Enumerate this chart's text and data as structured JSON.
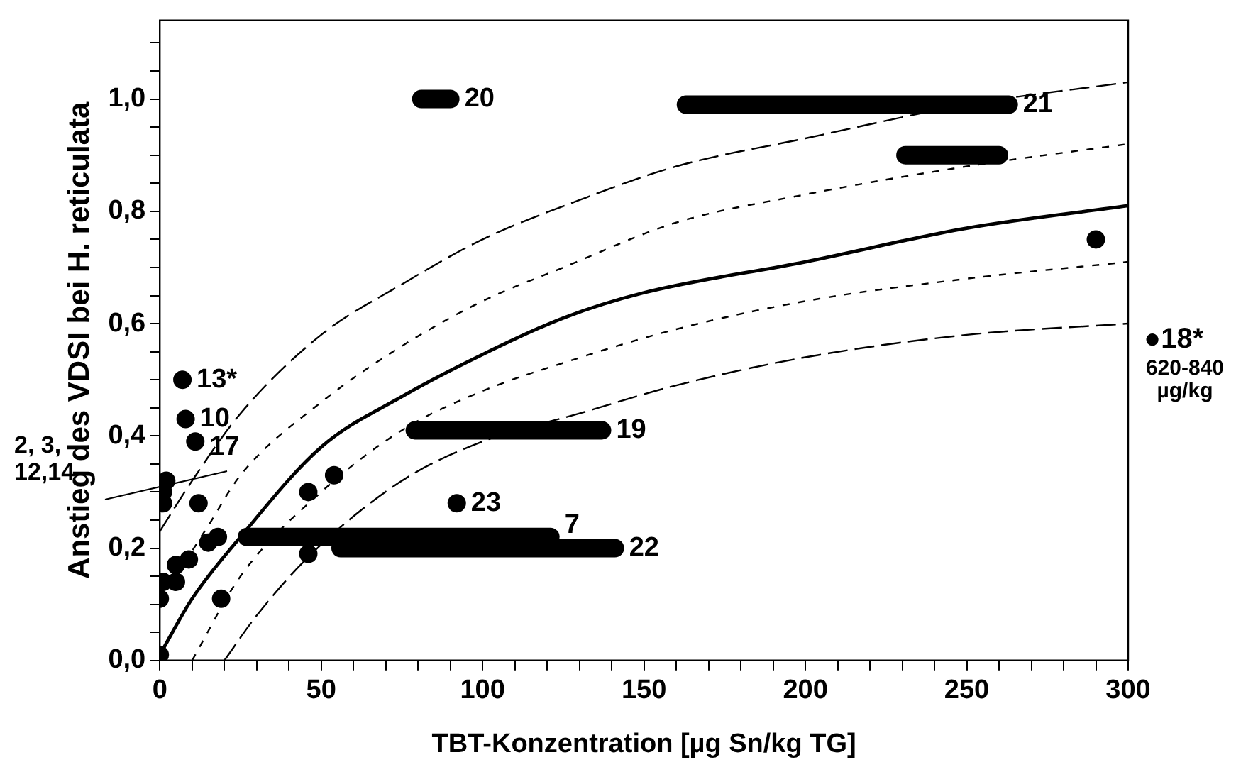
{
  "chart_data": {
    "type": "scatter",
    "xlabel": "TBT-Konzentration [µg Sn/kg TG]",
    "ylabel": "Anstieg des VDSI bei H. reticulata",
    "xlim": [
      0,
      300
    ],
    "ylim": [
      0,
      1.14
    ],
    "xticks": [
      0,
      {
        "value": 10,
        "label": null
      },
      {
        "value": 20,
        "label": null
      },
      {
        "value": 30,
        "label": null
      },
      {
        "value": 40,
        "label": null
      },
      50,
      {
        "value": 60,
        "label": null
      },
      {
        "value": 70,
        "label": null
      },
      {
        "value": 80,
        "label": null
      },
      {
        "value": 90,
        "label": null
      },
      100,
      {
        "value": 110,
        "label": null
      },
      {
        "value": 120,
        "label": null
      },
      {
        "value": 130,
        "label": null
      },
      {
        "value": 140,
        "label": null
      },
      150,
      {
        "value": 160,
        "label": null
      },
      {
        "value": 170,
        "label": null
      },
      {
        "value": 180,
        "label": null
      },
      {
        "value": 190,
        "label": null
      },
      200,
      {
        "value": 210,
        "label": null
      },
      {
        "value": 220,
        "label": null
      },
      {
        "value": 230,
        "label": null
      },
      {
        "value": 240,
        "label": null
      },
      250,
      {
        "value": 260,
        "label": null
      },
      {
        "value": 270,
        "label": null
      },
      {
        "value": 280,
        "label": null
      },
      {
        "value": 290,
        "label": null
      },
      300
    ],
    "yticks": [
      {
        "value": 0,
        "label": "0,0"
      },
      {
        "value": 0.05,
        "label": null
      },
      {
        "value": 0.1,
        "label": null
      },
      {
        "value": 0.15,
        "label": null
      },
      {
        "value": 0.2,
        "label": "0,2"
      },
      {
        "value": 0.25,
        "label": null
      },
      {
        "value": 0.3,
        "label": null
      },
      {
        "value": 0.35,
        "label": null
      },
      {
        "value": 0.4,
        "label": "0,4"
      },
      {
        "value": 0.45,
        "label": null
      },
      {
        "value": 0.5,
        "label": null
      },
      {
        "value": 0.55,
        "label": null
      },
      {
        "value": 0.6,
        "label": "0,6"
      },
      {
        "value": 0.65,
        "label": null
      },
      {
        "value": 0.7,
        "label": null
      },
      {
        "value": 0.75,
        "label": null
      },
      {
        "value": 0.8,
        "label": "0,8"
      },
      {
        "value": 0.85,
        "label": null
      },
      {
        "value": 0.9,
        "label": null
      },
      {
        "value": 0.95,
        "label": null
      },
      {
        "value": 1.0,
        "label": "1,0"
      },
      {
        "value": 1.05,
        "label": null
      },
      {
        "value": 1.1,
        "label": null
      }
    ],
    "grid": false,
    "legend": false,
    "annotations": [
      "2, 3, 12,14",
      "●18*",
      "620-840 µg/kg",
      {
        "text": "13*",
        "x": 7,
        "y": 0.5
      },
      {
        "text": "10",
        "x": 8,
        "y": 0.43
      },
      {
        "text": "17",
        "x": 11,
        "y": 0.38
      },
      {
        "text": "23",
        "x": 92,
        "y": 0.28
      },
      {
        "text": "20",
        "x": 90,
        "y": 1.0
      },
      {
        "text": "21",
        "x": 263,
        "y": 0.99
      },
      {
        "text": "19",
        "x": 137,
        "y": 0.41
      },
      {
        "text": "7",
        "x": 121,
        "y": 0.24
      },
      {
        "text": "22",
        "x": 141,
        "y": 0.2
      }
    ],
    "series": [
      {
        "color": "#000000",
        "marker": "circle",
        "x": [
          0,
          0,
          1,
          1,
          1,
          2,
          5,
          5,
          9,
          15,
          18,
          19,
          12,
          7,
          8,
          11,
          46,
          54,
          46,
          92,
          290
        ],
        "values": [
          0.01,
          0.11,
          0.14,
          0.28,
          0.3,
          0.32,
          0.14,
          0.17,
          0.18,
          0.21,
          0.22,
          0.11,
          0.28,
          0.5,
          0.43,
          0.39,
          0.3,
          0.33,
          0.19,
          0.28,
          0.75
        ]
      },
      {
        "type": "line",
        "color": "#000000",
        "line_style": "solid",
        "marker": "none",
        "x": [
          81,
          90
        ],
        "values": [
          1.0,
          1.0
        ]
      },
      {
        "type": "line",
        "color": "#000000",
        "line_style": "solid",
        "marker": "none",
        "x": [
          163,
          263
        ],
        "values": [
          0.99,
          0.99
        ]
      },
      {
        "type": "line",
        "color": "#000000",
        "line_style": "solid",
        "marker": "none",
        "x": [
          231,
          260
        ],
        "values": [
          0.9,
          0.9
        ]
      },
      {
        "type": "line",
        "color": "#000000",
        "line_style": "solid",
        "marker": "none",
        "x": [
          79,
          137
        ],
        "values": [
          0.41,
          0.41
        ]
      },
      {
        "type": "line",
        "color": "#000000",
        "line_style": "solid",
        "marker": "none",
        "x": [
          27,
          121
        ],
        "values": [
          0.22,
          0.22
        ]
      },
      {
        "type": "line",
        "color": "#000000",
        "line_style": "solid",
        "marker": "none",
        "x": [
          56,
          141
        ],
        "values": [
          0.2,
          0.2
        ]
      },
      {
        "type": "line",
        "color": "#000000",
        "line_style": "solid",
        "marker": "none",
        "x": [
          0,
          10,
          25,
          50,
          75,
          100,
          125,
          150,
          200,
          250,
          300
        ],
        "values": [
          0.01,
          0.11,
          0.22,
          0.38,
          0.47,
          0.545,
          0.61,
          0.655,
          0.71,
          0.77,
          0.81
        ]
      },
      {
        "type": "line",
        "color": "#000000",
        "line_style": "dashed",
        "marker": "none",
        "x": [
          0,
          10,
          25,
          50,
          75,
          100,
          130,
          160,
          200,
          250,
          300
        ],
        "values": [
          0.23,
          0.32,
          0.44,
          0.58,
          0.67,
          0.75,
          0.82,
          0.88,
          0.93,
          0.99,
          1.03
        ]
      },
      {
        "type": "line",
        "color": "#000000",
        "line_style": "dotted",
        "marker": "none",
        "x": [
          5,
          15,
          25,
          50,
          75,
          100,
          125,
          160,
          200,
          250,
          300
        ],
        "values": [
          0.15,
          0.24,
          0.33,
          0.46,
          0.56,
          0.64,
          0.7,
          0.78,
          0.83,
          0.88,
          0.92
        ]
      },
      {
        "type": "line",
        "color": "#000000",
        "line_style": "dotted",
        "marker": "none",
        "x": [
          10,
          25,
          50,
          75,
          100,
          125,
          160,
          200,
          250,
          300
        ],
        "values": [
          0,
          0.15,
          0.3,
          0.41,
          0.48,
          0.53,
          0.59,
          0.64,
          0.68,
          0.71
        ]
      },
      {
        "type": "line",
        "color": "#000000",
        "line_style": "dashed",
        "marker": "none",
        "x": [
          20,
          30,
          47,
          75,
          100,
          130,
          160,
          200,
          250,
          300
        ],
        "values": [
          0,
          0.08,
          0.19,
          0.32,
          0.39,
          0.44,
          0.49,
          0.54,
          0.58,
          0.6
        ]
      }
    ]
  }
}
